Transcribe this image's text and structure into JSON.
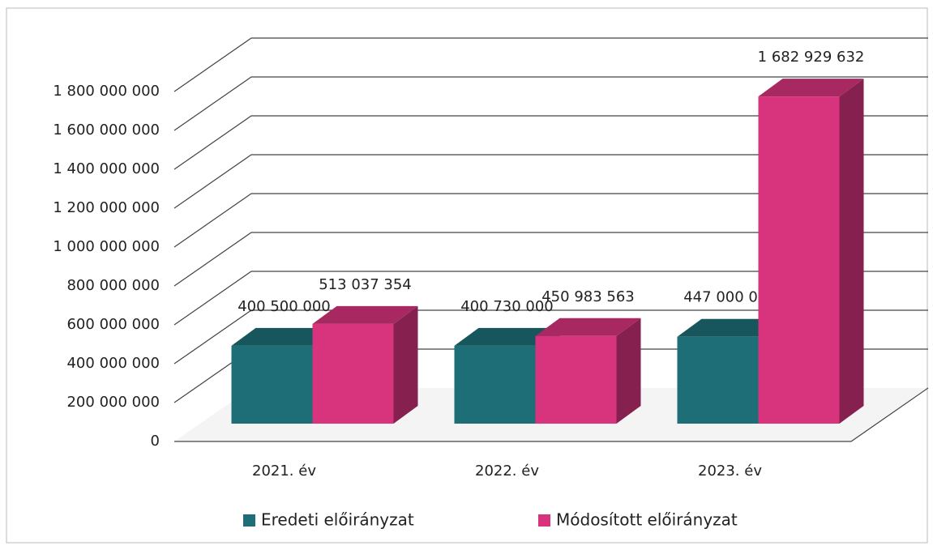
{
  "chart_data": {
    "type": "bar3d",
    "categories": [
      "2021. év",
      "2022. év",
      "2023. év"
    ],
    "series": [
      {
        "name": "Eredeti előirányzat",
        "color": "#1e6e77",
        "values": [
          400500000,
          400730000,
          447000000
        ],
        "value_labels": [
          "400 500 000",
          "400 730 000",
          "447 000 000"
        ]
      },
      {
        "name": "Módosított előirányzat",
        "color": "#d8337d",
        "values": [
          513037354,
          450983563,
          1682929632
        ],
        "value_labels": [
          "513 037 354",
          "450 983 563",
          "1 682 929 632"
        ]
      }
    ],
    "ylim": [
      0,
      1800000000
    ],
    "yticks": [
      0,
      {
        "value": 200000000,
        "label": "200 000 000"
      },
      {
        "value": 400000000,
        "label": "400 000 000"
      },
      {
        "value": 600000000,
        "label": "600 000 000"
      },
      {
        "value": 800000000,
        "label": "800 000 000"
      },
      {
        "value": 1000000000,
        "label": "1 000 000 000"
      },
      {
        "value": 1200000000,
        "label": "1 200 000 000"
      },
      {
        "value": 1400000000,
        "label": "1 400 000 000"
      },
      {
        "value": 1600000000,
        "label": "1 600 000 000"
      },
      {
        "value": 1800000000,
        "label": "1 800 000 000"
      }
    ],
    "grid": true
  }
}
